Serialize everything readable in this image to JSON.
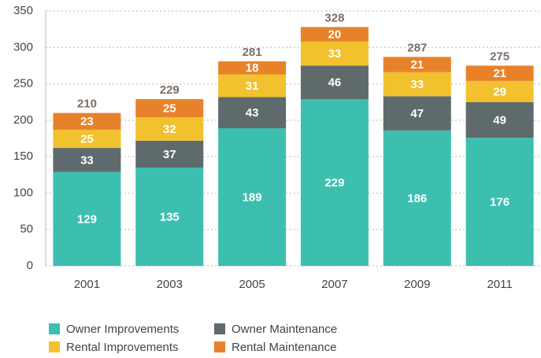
{
  "chart_data": {
    "type": "stacked_bar",
    "categories": [
      "2001",
      "2003",
      "2005",
      "2007",
      "2009",
      "2011"
    ],
    "series": [
      {
        "name": "Owner Improvements",
        "color": "#3dbfb0",
        "values": [
          129,
          135,
          189,
          229,
          186,
          176
        ]
      },
      {
        "name": "Owner Maintenance",
        "color": "#5f6a6c",
        "values": [
          33,
          37,
          43,
          46,
          47,
          49
        ]
      },
      {
        "name": "Rental Improvements",
        "color": "#f2c12e",
        "values": [
          25,
          32,
          31,
          33,
          33,
          29
        ]
      },
      {
        "name": "Rental Maintenance",
        "color": "#e8822a",
        "values": [
          23,
          25,
          18,
          20,
          21,
          21
        ]
      }
    ],
    "totals": [
      210,
      229,
      281,
      328,
      287,
      275
    ],
    "ylim": [
      0,
      350
    ],
    "yticks": [
      0,
      50,
      100,
      150,
      200,
      250,
      300,
      350
    ],
    "grid": true
  }
}
